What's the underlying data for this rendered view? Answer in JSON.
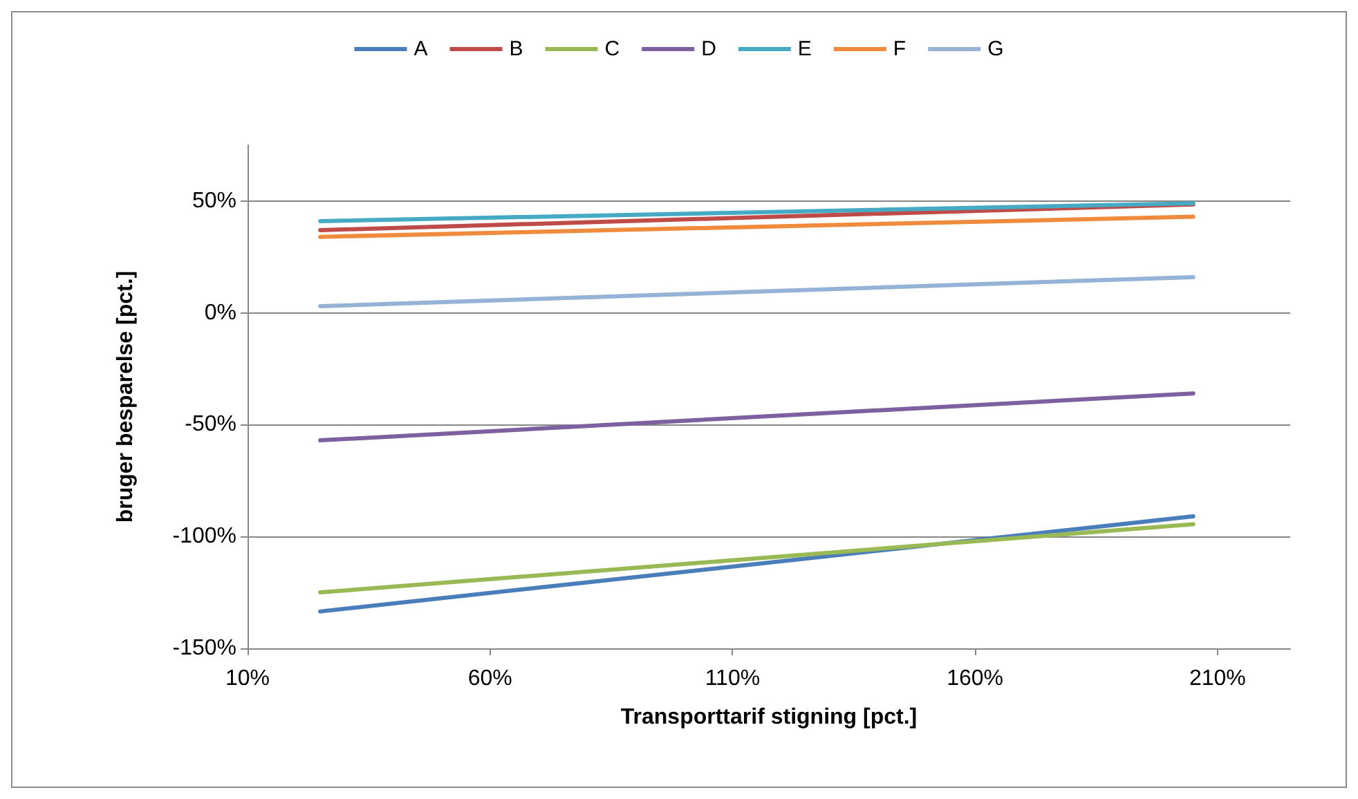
{
  "chart_data": {
    "type": "line",
    "xlabel": "Transporttarif stigning [pct.]",
    "ylabel": "bruger besparelse [pct.]",
    "x": [
      25,
      205
    ],
    "series": [
      {
        "name": "A",
        "color": "#4a7ebb",
        "values": [
          -133.5,
          -91
        ]
      },
      {
        "name": "B",
        "color": "#be4b48",
        "values": [
          37,
          48.5
        ]
      },
      {
        "name": "C",
        "color": "#98b954",
        "values": [
          -125,
          -94.5
        ]
      },
      {
        "name": "D",
        "color": "#7d60a0",
        "values": [
          -57,
          -36
        ]
      },
      {
        "name": "E",
        "color": "#46aac5",
        "values": [
          41,
          49
        ]
      },
      {
        "name": "F",
        "color": "#f08a3c",
        "values": [
          34,
          43
        ]
      },
      {
        "name": "G",
        "color": "#95b3d7",
        "values": [
          3,
          16
        ]
      }
    ],
    "xlim": [
      10,
      225
    ],
    "xticks": [
      {
        "value": 10,
        "label": "10%"
      },
      {
        "value": 60,
        "label": "60%"
      },
      {
        "value": 110,
        "label": "110%"
      },
      {
        "value": 160,
        "label": "160%"
      },
      {
        "value": 210,
        "label": "210%"
      }
    ],
    "ylim": [
      -150,
      75
    ],
    "yticks": [
      {
        "value": -150,
        "label": "-150%"
      },
      {
        "value": -100,
        "label": "-100%"
      },
      {
        "value": -50,
        "label": "-50%"
      },
      {
        "value": 0,
        "label": "0%"
      },
      {
        "value": 50,
        "label": "50%"
      }
    ],
    "grid": "y",
    "legend": "top",
    "marker": "none",
    "line_style": "solid"
  }
}
